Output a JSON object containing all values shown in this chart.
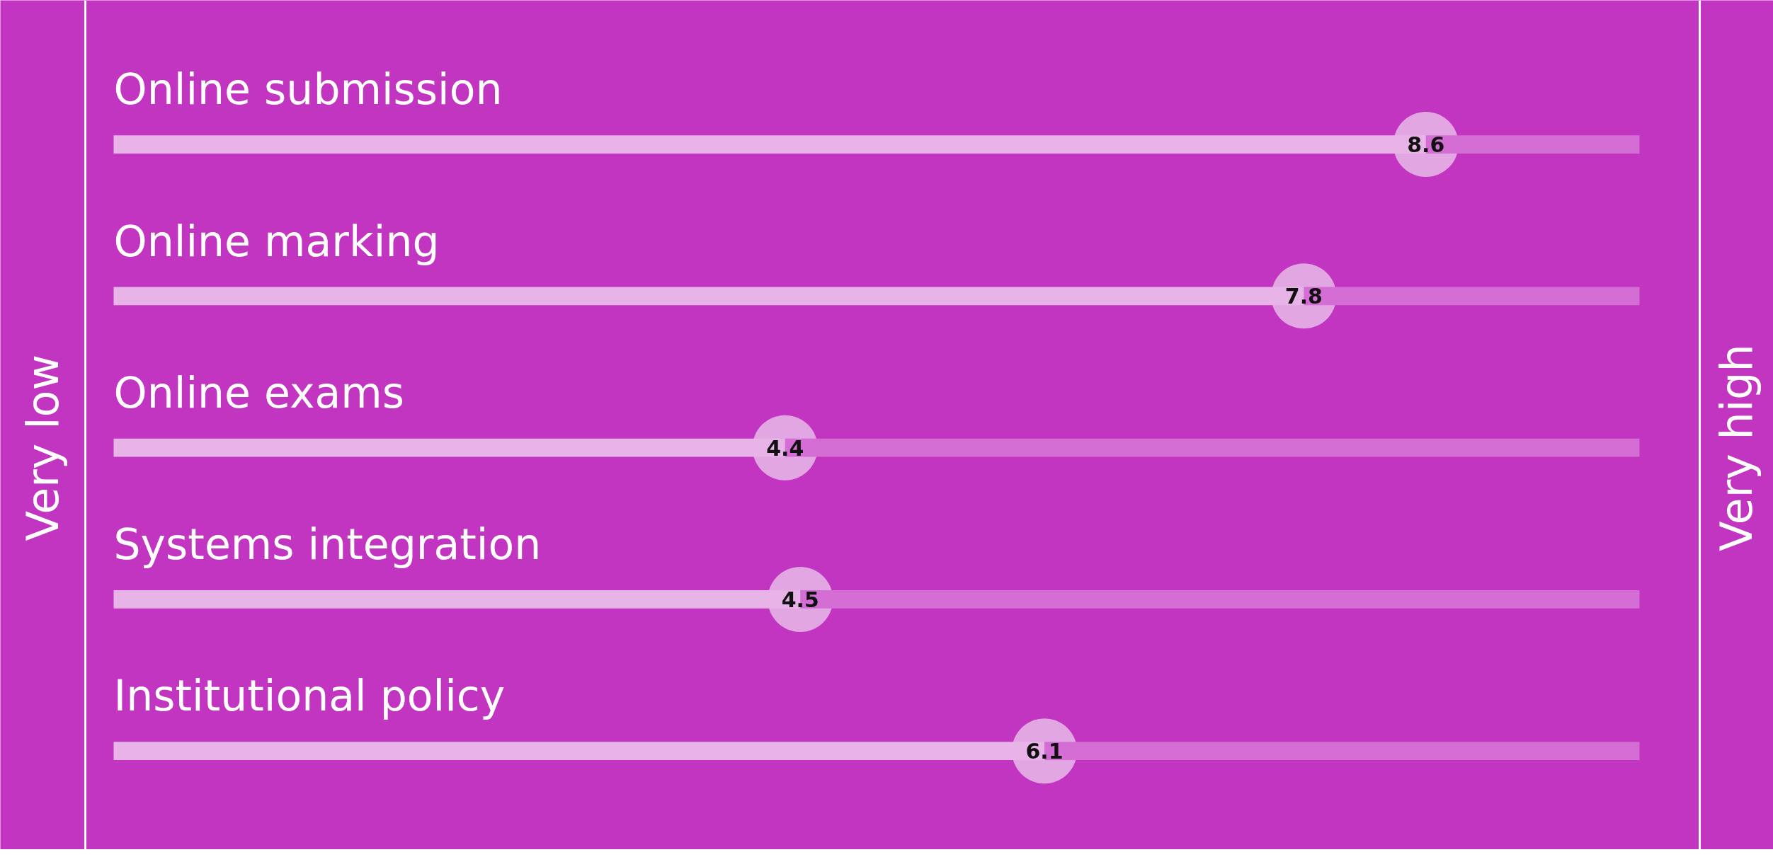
{
  "chart_data": {
    "type": "bar",
    "orientation": "horizontal",
    "stacked": true,
    "categories": [
      "Online submission",
      "Online marking",
      "Online exams",
      "Systems integration",
      "Institutional policy"
    ],
    "series": [
      {
        "color": "#e8b4e8",
        "values": [
          8.6,
          7.8,
          4.4,
          4.5,
          6.1
        ],
        "value_labels": [
          "8.6",
          "7.8",
          "4.4",
          "4.5",
          "6.1"
        ]
      },
      {
        "color": "#d46ed4",
        "values": [
          1.4,
          2.2,
          5.6,
          5.5,
          3.9
        ]
      }
    ],
    "annotations": [
      "Very low",
      "Very high"
    ]
  }
}
